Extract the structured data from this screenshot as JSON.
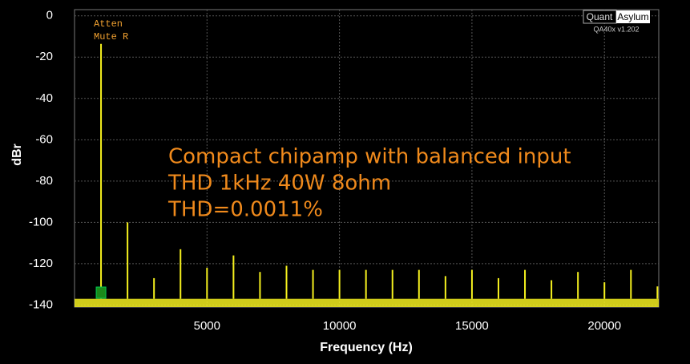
{
  "chart_data": {
    "type": "spectrum",
    "x": [
      1000,
      2000,
      3000,
      4000,
      5000,
      6000,
      7000,
      8000,
      9000,
      10000,
      11000,
      12000,
      13000,
      14000,
      15000,
      16000,
      17000,
      18000,
      19000,
      20000,
      21000,
      22000
    ],
    "values": [
      -13.6,
      -100,
      -127,
      -113,
      -122,
      -116,
      -124,
      -121,
      -123,
      -123,
      -123,
      -123,
      -123,
      -126,
      -123,
      -127,
      -123,
      -128,
      -124,
      -129,
      -123,
      -131
    ],
    "noise_floor": -137,
    "color": "#f5f01e",
    "xlim": [
      0,
      22050
    ],
    "ylim": [
      -141,
      3
    ],
    "xticks": [
      5000,
      10000,
      15000,
      20000
    ],
    "yticks": [
      0,
      -20,
      -40,
      -60,
      -80,
      -100,
      -120,
      -140
    ],
    "grid": true,
    "xlabel": "Frequency (Hz)",
    "ylabel": "dBr",
    "annotations": [
      "Compact chipamp with balanced input",
      "THD 1kHz 40W 8ohm",
      "THD=0.0011%"
    ],
    "status": [
      "Atten",
      "Mute R"
    ],
    "logo": [
      "Quant",
      "Asylum"
    ],
    "version": "QA40x v1.202"
  }
}
